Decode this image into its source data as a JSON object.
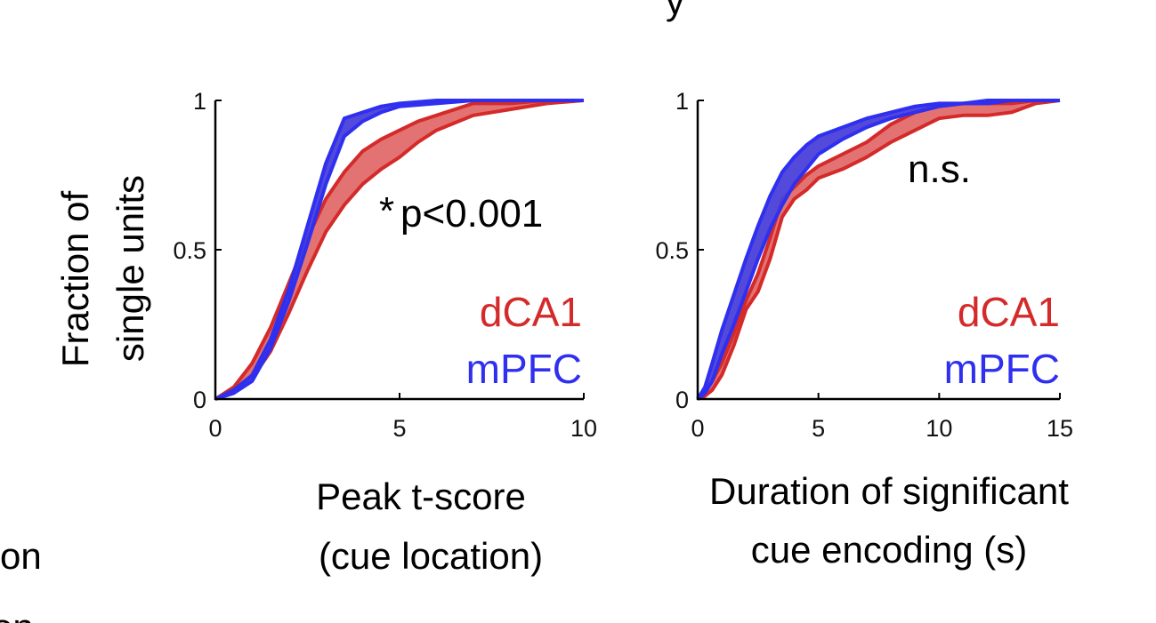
{
  "page": {
    "partial_text_top": "y",
    "partial_text_left_1": "on",
    "partial_text_left_2": "tion"
  },
  "colors": {
    "dCA1": "#d42a2a",
    "mPFC": "#2f2ff0",
    "dCA1_fill": "#e06464",
    "mPFC_fill": "#4a3fd8",
    "axis": "#000000"
  },
  "shared": {
    "ylabel_line1": "Fraction of",
    "ylabel_line2": "single units"
  },
  "chart_data": [
    {
      "type": "line",
      "title": "",
      "xlabel_line1": "Peak t-score",
      "xlabel_line2": "(cue location)",
      "xlim": [
        0,
        10
      ],
      "ylim": [
        0,
        1
      ],
      "xticks": [
        0,
        5,
        10
      ],
      "yticks": [
        0,
        0.5,
        1
      ],
      "xtick_labels": [
        "0",
        "5",
        "10"
      ],
      "ytick_labels": [
        "0",
        "0.5",
        "1"
      ],
      "annotation_star": "*",
      "annotation_text": "p<0.001",
      "legend_position": "bottom-right",
      "legend": [
        "dCA1",
        "mPFC"
      ],
      "series": [
        {
          "name": "mPFC",
          "x": [
            0,
            0.5,
            1.0,
            1.5,
            2.0,
            2.5,
            3.0,
            3.5,
            4.0,
            4.5,
            5.0,
            6.0,
            7.0,
            8.0,
            9.0,
            10.0
          ],
          "upper": [
            0,
            0.03,
            0.08,
            0.2,
            0.37,
            0.58,
            0.79,
            0.94,
            0.96,
            0.98,
            0.99,
            1.0,
            1.0,
            1.0,
            1.0,
            1.0
          ],
          "lower": [
            0,
            0.02,
            0.06,
            0.17,
            0.33,
            0.52,
            0.72,
            0.88,
            0.93,
            0.96,
            0.98,
            0.99,
            1.0,
            1.0,
            1.0,
            1.0
          ]
        },
        {
          "name": "dCA1",
          "x": [
            0,
            0.5,
            1.0,
            1.5,
            2.0,
            2.5,
            3.0,
            3.5,
            4.0,
            4.5,
            5.0,
            5.5,
            6.0,
            7.0,
            8.0,
            9.0,
            10.0
          ],
          "upper": [
            0,
            0.04,
            0.12,
            0.24,
            0.39,
            0.54,
            0.67,
            0.76,
            0.83,
            0.87,
            0.9,
            0.93,
            0.95,
            0.99,
            0.99,
            1.0,
            1.0
          ],
          "lower": [
            0,
            0.02,
            0.07,
            0.16,
            0.29,
            0.43,
            0.56,
            0.65,
            0.72,
            0.77,
            0.81,
            0.86,
            0.9,
            0.95,
            0.97,
            0.99,
            1.0
          ]
        }
      ]
    },
    {
      "type": "line",
      "title": "",
      "xlabel_line1": "Duration of significant",
      "xlabel_line2": "cue encoding (s)",
      "xlim": [
        0,
        15
      ],
      "ylim": [
        0,
        1
      ],
      "xticks": [
        0,
        5,
        10,
        15
      ],
      "yticks": [
        0,
        0.5,
        1
      ],
      "xtick_labels": [
        "0",
        "5",
        "10",
        "15"
      ],
      "ytick_labels": [
        "0",
        "0.5",
        "1"
      ],
      "annotation_star": "",
      "annotation_text": "n.s.",
      "legend_position": "bottom-right",
      "legend": [
        "dCA1",
        "mPFC"
      ],
      "series": [
        {
          "name": "mPFC",
          "x": [
            0,
            0.3,
            0.6,
            1.0,
            1.5,
            2.0,
            2.5,
            3.0,
            3.5,
            4.0,
            4.5,
            5.0,
            6.0,
            7.0,
            8.0,
            9.0,
            10.0,
            11.0,
            12.0,
            13.0,
            14.0,
            15.0
          ],
          "upper": [
            0,
            0.04,
            0.12,
            0.23,
            0.35,
            0.47,
            0.58,
            0.68,
            0.76,
            0.81,
            0.85,
            0.88,
            0.91,
            0.94,
            0.96,
            0.98,
            0.99,
            0.99,
            1.0,
            1.0,
            1.0,
            1.0
          ],
          "lower": [
            0,
            0.02,
            0.06,
            0.15,
            0.25,
            0.36,
            0.47,
            0.57,
            0.65,
            0.72,
            0.77,
            0.82,
            0.87,
            0.91,
            0.94,
            0.96,
            0.98,
            0.99,
            0.99,
            1.0,
            1.0,
            1.0
          ]
        },
        {
          "name": "dCA1",
          "x": [
            0,
            0.3,
            0.6,
            1.0,
            1.5,
            2.0,
            2.5,
            3.0,
            3.5,
            4.0,
            4.5,
            5.0,
            6.0,
            7.0,
            8.0,
            9.0,
            10.0,
            11.0,
            12.0,
            13.0,
            14.0,
            15.0
          ],
          "upper": [
            0,
            0.03,
            0.06,
            0.12,
            0.22,
            0.33,
            0.42,
            0.54,
            0.67,
            0.71,
            0.75,
            0.78,
            0.82,
            0.86,
            0.92,
            0.96,
            0.98,
            0.99,
            0.99,
            0.99,
            1.0,
            1.0
          ],
          "lower": [
            0,
            0.01,
            0.03,
            0.08,
            0.18,
            0.3,
            0.36,
            0.47,
            0.61,
            0.67,
            0.7,
            0.74,
            0.77,
            0.81,
            0.86,
            0.9,
            0.94,
            0.95,
            0.95,
            0.96,
            0.99,
            1.0
          ]
        }
      ]
    }
  ]
}
